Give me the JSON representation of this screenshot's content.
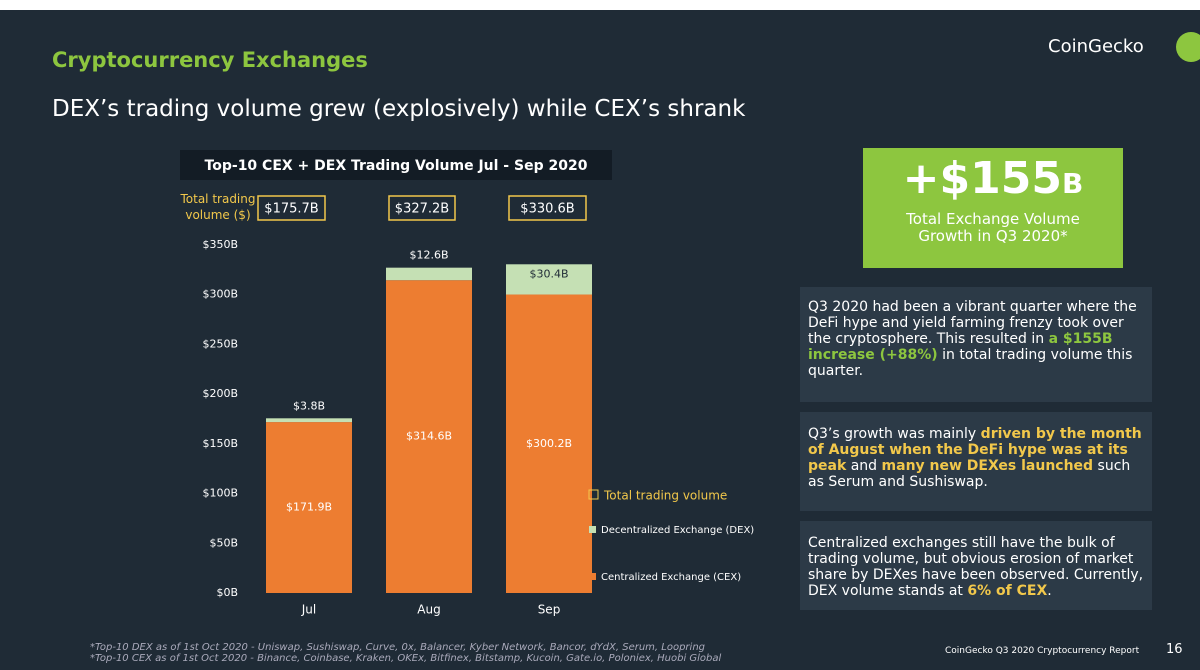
{
  "header": {
    "section": "Cryptocurrency Exchanges",
    "headline": "DEX’s trading volume grew (explosively) while CEX’s shrank",
    "brand": "CoinGecko"
  },
  "chart_data": {
    "type": "stacked_bar",
    "title": "Top-10 CEX + DEX Trading Volume Jul - Sep 2020",
    "categories": [
      "Jul",
      "Aug",
      "Sep"
    ],
    "series": [
      {
        "name": "Centralized Exchange (CEX)",
        "color": "#ed7d31",
        "values": [
          171.9,
          314.6,
          300.2
        ],
        "value_labels": [
          "$171.9B",
          "$314.6B",
          "$300.2B"
        ]
      },
      {
        "name": "Decentralized Exchange (DEX)",
        "color": "#c5e0b4",
        "values": [
          3.8,
          12.6,
          30.4
        ],
        "value_labels": [
          "$3.8B",
          "$12.6B",
          "$30.4B"
        ]
      }
    ],
    "totals": {
      "name": "Total trading volume",
      "label": "Total trading volume ($)",
      "color": "#f2c84b",
      "values": [
        175.7,
        327.2,
        330.6
      ],
      "value_labels": [
        "$175.7B",
        "$327.2B",
        "$330.6B"
      ]
    },
    "ylim": [
      0,
      350
    ],
    "yticks": [
      {
        "value": 0,
        "label": "$0B"
      },
      {
        "value": 50,
        "label": "$50B"
      },
      {
        "value": 100,
        "label": "$100B"
      },
      {
        "value": 150,
        "label": "$150B"
      },
      {
        "value": 200,
        "label": "$200B"
      },
      {
        "value": 250,
        "label": "$250B"
      },
      {
        "value": 300,
        "label": "$300B"
      },
      {
        "value": 350,
        "label": "$350B"
      }
    ]
  },
  "callout": {
    "amount": "+$155",
    "unit": "B",
    "caption": "Total Exchange Volume Growth in Q3 2020*"
  },
  "notes": [
    {
      "color": "#8dc63f",
      "segments": [
        {
          "text": "Q3 2020 had been a vibrant quarter where the DeFi hype and yield farming frenzy took over the cryptosphere. This resulted in "
        },
        {
          "text": "a $155B increase (+88%)",
          "em": true
        },
        {
          "text": " in total trading volume this quarter."
        }
      ]
    },
    {
      "color": "#f2c84b",
      "segments": [
        {
          "text": "Q3’s growth was mainly "
        },
        {
          "text": "driven by the month of August when the DeFi hype was at its peak",
          "em": true
        },
        {
          "text": " and "
        },
        {
          "text": "many new DEXes launched",
          "em": true
        },
        {
          "text": " such as Serum and Sushiswap."
        }
      ]
    },
    {
      "color": "#f2c84b",
      "segments": [
        {
          "text": "Centralized exchanges still have the bulk of trading volume, but obvious erosion of market share by DEXes have been observed. Currently, DEX volume stands at "
        },
        {
          "text": "6% of CEX",
          "em": true
        },
        {
          "text": "."
        }
      ]
    }
  ],
  "footer": {
    "footnotes": [
      "*Top-10 DEX as of 1st Oct 2020 - Uniswap, Sushiswap, Curve, 0x, Balancer, Kyber Network, Bancor, dYdX, Serum, Loopring",
      "*Top-10 CEX as of 1st Oct 2020 - Binance, Coinbase, Kraken, OKEx, Bitfinex, Bitstamp, Kucoin, Gate.io, Poloniex, Huobi Global"
    ],
    "report": "CoinGecko Q3 2020 Cryptocurrency Report",
    "page": "16"
  }
}
